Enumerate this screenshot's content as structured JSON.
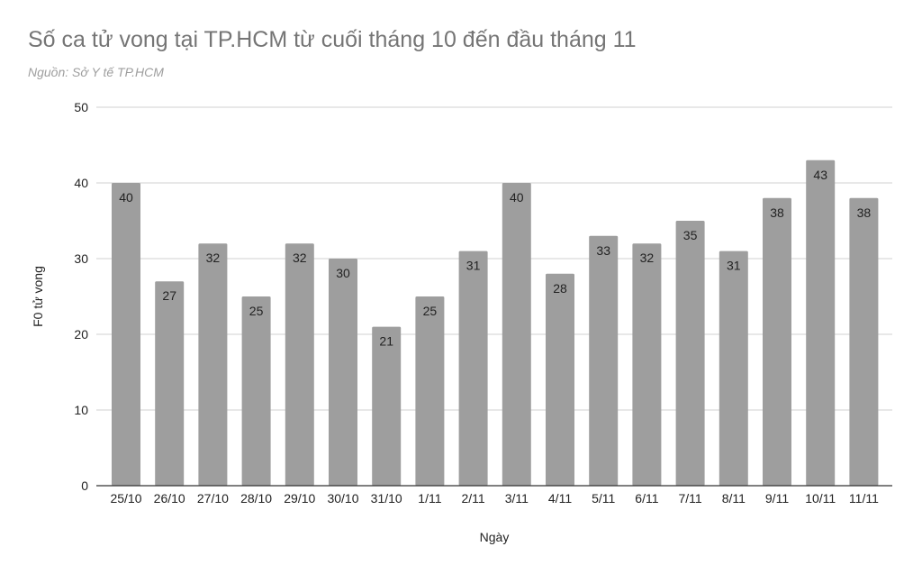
{
  "title": "Số ca tử vong tại TP.HCM từ cuối tháng 10 đến đầu tháng 11",
  "subtitle": "Nguồn: Sở Y tế TP.HCM",
  "colors": {
    "bar": "#9e9e9e",
    "grid": "#d0d0d0",
    "axis": "#333333",
    "title": "#757575"
  },
  "chart_data": {
    "type": "bar",
    "title": "Số ca tử vong tại TP.HCM từ cuối tháng 10 đến đầu tháng 11",
    "subtitle": "Nguồn: Sở Y tế TP.HCM",
    "xlabel": "Ngày",
    "ylabel": "F0 tử vong",
    "ylim": [
      0,
      50
    ],
    "yticks": [
      0,
      10,
      20,
      30,
      40,
      50
    ],
    "grid": true,
    "legend": null,
    "data_labels": true,
    "categories": [
      "25/10",
      "26/10",
      "27/10",
      "28/10",
      "29/10",
      "30/10",
      "31/10",
      "1/11",
      "2/11",
      "3/11",
      "4/11",
      "5/11",
      "6/11",
      "7/11",
      "8/11",
      "9/11",
      "10/11",
      "11/11"
    ],
    "values": [
      40,
      27,
      32,
      25,
      32,
      30,
      21,
      25,
      31,
      40,
      28,
      33,
      32,
      35,
      31,
      38,
      43,
      38
    ]
  }
}
